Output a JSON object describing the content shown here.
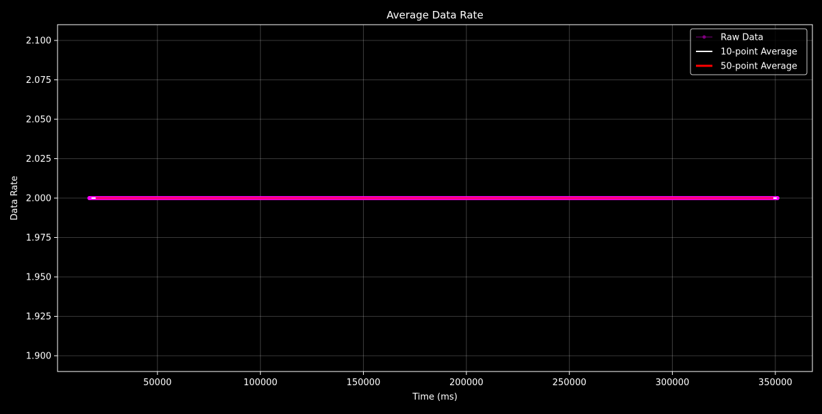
{
  "chart_data": {
    "type": "line",
    "title": "Average Data Rate",
    "xlabel": "Time (ms)",
    "ylabel": "Data Rate",
    "xlim": [
      1500,
      368000
    ],
    "ylim": [
      1.89,
      2.11
    ],
    "xticks": [
      50000,
      100000,
      150000,
      200000,
      250000,
      300000,
      350000
    ],
    "yticks": [
      1.9,
      1.925,
      1.95,
      1.975,
      2.0,
      2.025,
      2.05,
      2.075,
      2.1
    ],
    "xtick_labels": [
      "50000",
      "100000",
      "150000",
      "200000",
      "250000",
      "300000",
      "350000"
    ],
    "ytick_labels": [
      "1.900",
      "1.925",
      "1.950",
      "1.975",
      "2.000",
      "2.025",
      "2.050",
      "2.075",
      "2.100"
    ],
    "grid": true,
    "legend_position": "top-right",
    "series": [
      {
        "name": "Raw Data",
        "color": "#800080",
        "style": "line-with-markers",
        "x_start": 17000,
        "x_end": 351000,
        "value": 2.0
      },
      {
        "name": "10-point Average",
        "color": "#ffffff",
        "style": "line",
        "x_start": 17000,
        "x_end": 351000,
        "value": 2.0
      },
      {
        "name": "50-point Average",
        "color": "#ff0000",
        "style": "line",
        "x_start": 20000,
        "x_end": 349000,
        "value": 2.0
      }
    ]
  }
}
